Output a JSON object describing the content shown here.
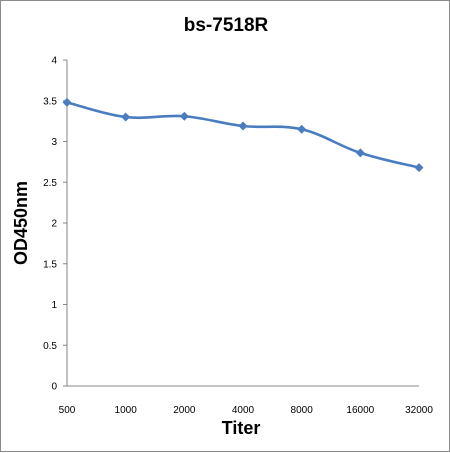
{
  "chart_data": {
    "type": "line",
    "title": "bs-7518R",
    "xlabel": "Titer",
    "ylabel": "OD450nm",
    "categories": [
      "500",
      "1000",
      "2000",
      "4000",
      "8000",
      "16000",
      "32000"
    ],
    "series": [
      {
        "values": [
          3.48,
          3.3,
          3.31,
          3.19,
          3.15,
          2.86,
          2.68
        ]
      }
    ],
    "ylim": [
      0,
      4
    ],
    "yticks": [
      "0",
      "0.5",
      "1",
      "1.5",
      "2",
      "2.5",
      "3",
      "3.5",
      "4"
    ],
    "grid": false,
    "legend": "none",
    "line_color": "#4a7dbf"
  }
}
